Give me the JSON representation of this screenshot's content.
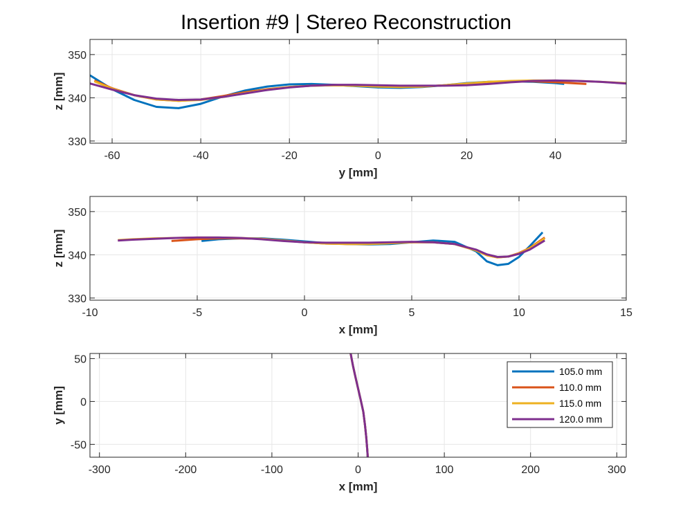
{
  "figure": {
    "title": "Insertion #9 | Stereo Reconstruction"
  },
  "colors": {
    "105.0 mm": "#0072BD",
    "110.0 mm": "#D95319",
    "115.0 mm": "#EDB120",
    "120.0 mm": "#7E2F8E",
    "grid": "#e6e6e6",
    "axis": "#262626"
  },
  "chart_data": [
    {
      "type": "line",
      "name": "yz-view",
      "xlabel": "y [mm]",
      "ylabel": "z [mm]",
      "xlim": [
        -65,
        56
      ],
      "ylim": [
        329.5,
        353.5
      ],
      "xticks": [
        -60,
        -40,
        -20,
        0,
        20,
        40
      ],
      "yticks": [
        330,
        340,
        350
      ],
      "grid": true,
      "series": [
        {
          "name": "105.0 mm",
          "x": [
            -65,
            -60,
            -55,
            -50,
            -45,
            -40,
            -35,
            -30,
            -25,
            -20,
            -15,
            -10,
            -5,
            0,
            5,
            10,
            15,
            20,
            25,
            30,
            35,
            40,
            42
          ],
          "y": [
            345.2,
            342.0,
            339.5,
            337.9,
            337.6,
            338.6,
            340.3,
            341.7,
            342.6,
            343.1,
            343.2,
            343.0,
            342.7,
            342.4,
            342.3,
            342.5,
            342.9,
            343.4,
            343.7,
            343.8,
            343.7,
            343.4,
            343.2
          ]
        },
        {
          "name": "110.0 mm",
          "x": [
            -64,
            -60,
            -55,
            -50,
            -45,
            -40,
            -35,
            -30,
            -25,
            -20,
            -15,
            -10,
            -5,
            0,
            5,
            10,
            15,
            20,
            25,
            30,
            35,
            40,
            47
          ],
          "y": [
            344.0,
            342.2,
            340.6,
            339.6,
            339.3,
            339.6,
            340.4,
            341.3,
            342.0,
            342.5,
            342.8,
            342.9,
            342.8,
            342.6,
            342.5,
            342.6,
            342.9,
            343.3,
            343.6,
            343.8,
            343.8,
            343.6,
            343.2
          ]
        },
        {
          "name": "115.0 mm",
          "x": [
            -64,
            -60,
            -55,
            -50,
            -45,
            -40,
            -35,
            -30,
            -25,
            -20,
            -15,
            -10,
            -5,
            0,
            5,
            10,
            15,
            20,
            25,
            30,
            35,
            40,
            45,
            50,
            56
          ],
          "y": [
            343.8,
            342.1,
            340.6,
            339.6,
            339.3,
            339.5,
            340.2,
            341.1,
            341.9,
            342.5,
            342.8,
            342.9,
            342.8,
            342.6,
            342.5,
            342.6,
            342.9,
            343.3,
            343.7,
            343.9,
            344.0,
            344.0,
            343.9,
            343.7,
            343.4
          ]
        },
        {
          "name": "120.0 mm",
          "x": [
            -65,
            -60,
            -55,
            -50,
            -45,
            -40,
            -35,
            -30,
            -25,
            -20,
            -15,
            -10,
            -5,
            0,
            5,
            10,
            15,
            20,
            25,
            30,
            35,
            40,
            45,
            50,
            56
          ],
          "y": [
            343.3,
            341.9,
            340.6,
            339.8,
            339.5,
            339.6,
            340.2,
            341.0,
            341.8,
            342.4,
            342.8,
            343.0,
            343.0,
            342.9,
            342.8,
            342.8,
            342.8,
            342.9,
            343.2,
            343.6,
            343.9,
            344.0,
            343.9,
            343.7,
            343.3
          ]
        }
      ]
    },
    {
      "type": "line",
      "name": "xz-view",
      "xlabel": "x [mm]",
      "ylabel": "z [mm]",
      "xlim": [
        -10,
        15
      ],
      "ylim": [
        329.5,
        353.5
      ],
      "xticks": [
        -10,
        -5,
        0,
        5,
        10,
        15
      ],
      "yticks": [
        330,
        340,
        350
      ],
      "grid": true,
      "series": [
        {
          "name": "105.0 mm",
          "x": [
            -4.8,
            -4,
            -3,
            -2,
            -1,
            0,
            1,
            2,
            3,
            4,
            5,
            6,
            7,
            8,
            8.5,
            9,
            9.5,
            10,
            10.5,
            11.1
          ],
          "y": [
            343.2,
            343.6,
            343.8,
            343.8,
            343.5,
            343.1,
            342.7,
            342.5,
            342.4,
            342.5,
            342.9,
            343.3,
            343.0,
            340.8,
            338.5,
            337.6,
            337.9,
            339.5,
            342.0,
            345.2
          ]
        },
        {
          "name": "110.0 mm",
          "x": [
            -6.2,
            -5,
            -4,
            -3,
            -2,
            -1,
            0,
            1,
            2,
            3,
            4,
            5,
            6,
            7,
            8,
            8.5,
            9,
            9.5,
            10,
            10.5,
            11.2
          ],
          "y": [
            343.2,
            343.6,
            343.8,
            343.8,
            343.7,
            343.3,
            342.9,
            342.6,
            342.5,
            342.5,
            342.7,
            342.9,
            342.9,
            342.5,
            341.0,
            339.9,
            339.4,
            339.6,
            340.4,
            341.6,
            344.0
          ]
        },
        {
          "name": "115.0 mm",
          "x": [
            -8.7,
            -8,
            -7,
            -6,
            -5,
            -4,
            -3,
            -2,
            -1,
            0,
            1,
            2,
            3,
            4,
            5,
            6,
            7,
            8,
            8.5,
            9,
            9.5,
            10,
            10.5,
            11.2
          ],
          "y": [
            343.4,
            343.6,
            343.8,
            343.9,
            344.0,
            344.0,
            343.9,
            343.7,
            343.3,
            342.9,
            342.6,
            342.5,
            342.5,
            342.7,
            342.9,
            342.9,
            342.5,
            341.0,
            339.9,
            339.4,
            339.6,
            340.3,
            341.5,
            343.8
          ]
        },
        {
          "name": "120.0 mm",
          "x": [
            -8.7,
            -8,
            -7,
            -6,
            -5,
            -4,
            -3,
            -2,
            -1,
            0,
            1,
            2,
            3,
            4,
            5,
            6,
            7,
            8,
            8.5,
            9,
            9.5,
            10,
            10.5,
            11.2
          ],
          "y": [
            343.3,
            343.5,
            343.7,
            343.9,
            344.0,
            344.0,
            343.9,
            343.6,
            343.2,
            342.9,
            342.8,
            342.8,
            342.8,
            342.9,
            343.0,
            342.9,
            342.5,
            341.2,
            340.1,
            339.5,
            339.6,
            340.2,
            341.2,
            343.3
          ]
        }
      ]
    },
    {
      "type": "line",
      "name": "xy-view",
      "xlabel": "x [mm]",
      "ylabel": "y [mm]",
      "xlim": [
        -311,
        311
      ],
      "ylim": [
        -65,
        56
      ],
      "xticks": [
        -300,
        -200,
        -100,
        0,
        100,
        200,
        300
      ],
      "yticks": [
        -50,
        0,
        50
      ],
      "grid": true,
      "legend": "top-right",
      "series": [
        {
          "name": "105.0 mm",
          "x": [
            -8.7,
            -6,
            -3,
            0,
            3,
            6,
            8,
            9.5,
            10.5,
            11.1
          ],
          "y": [
            56,
            42,
            28,
            15,
            2,
            -12,
            -28,
            -42,
            -55,
            -65
          ]
        },
        {
          "name": "110.0 mm",
          "x": [
            -8.7,
            -6,
            -3,
            0,
            3,
            6,
            8,
            9.5,
            10.5,
            11.2
          ],
          "y": [
            56,
            42,
            28,
            15,
            2,
            -12,
            -28,
            -42,
            -55,
            -65
          ]
        },
        {
          "name": "115.0 mm",
          "x": [
            -8.7,
            -6,
            -3,
            0,
            3,
            6,
            8,
            9.5,
            10.5,
            11.2
          ],
          "y": [
            56,
            42,
            28,
            15,
            2,
            -12,
            -28,
            -42,
            -55,
            -65
          ]
        },
        {
          "name": "120.0 mm",
          "x": [
            -8.7,
            -6,
            -3,
            0,
            3,
            6,
            8,
            9.5,
            10.5,
            11.2
          ],
          "y": [
            56,
            42,
            28,
            15,
            2,
            -12,
            -28,
            -42,
            -55,
            -65
          ]
        }
      ]
    }
  ]
}
